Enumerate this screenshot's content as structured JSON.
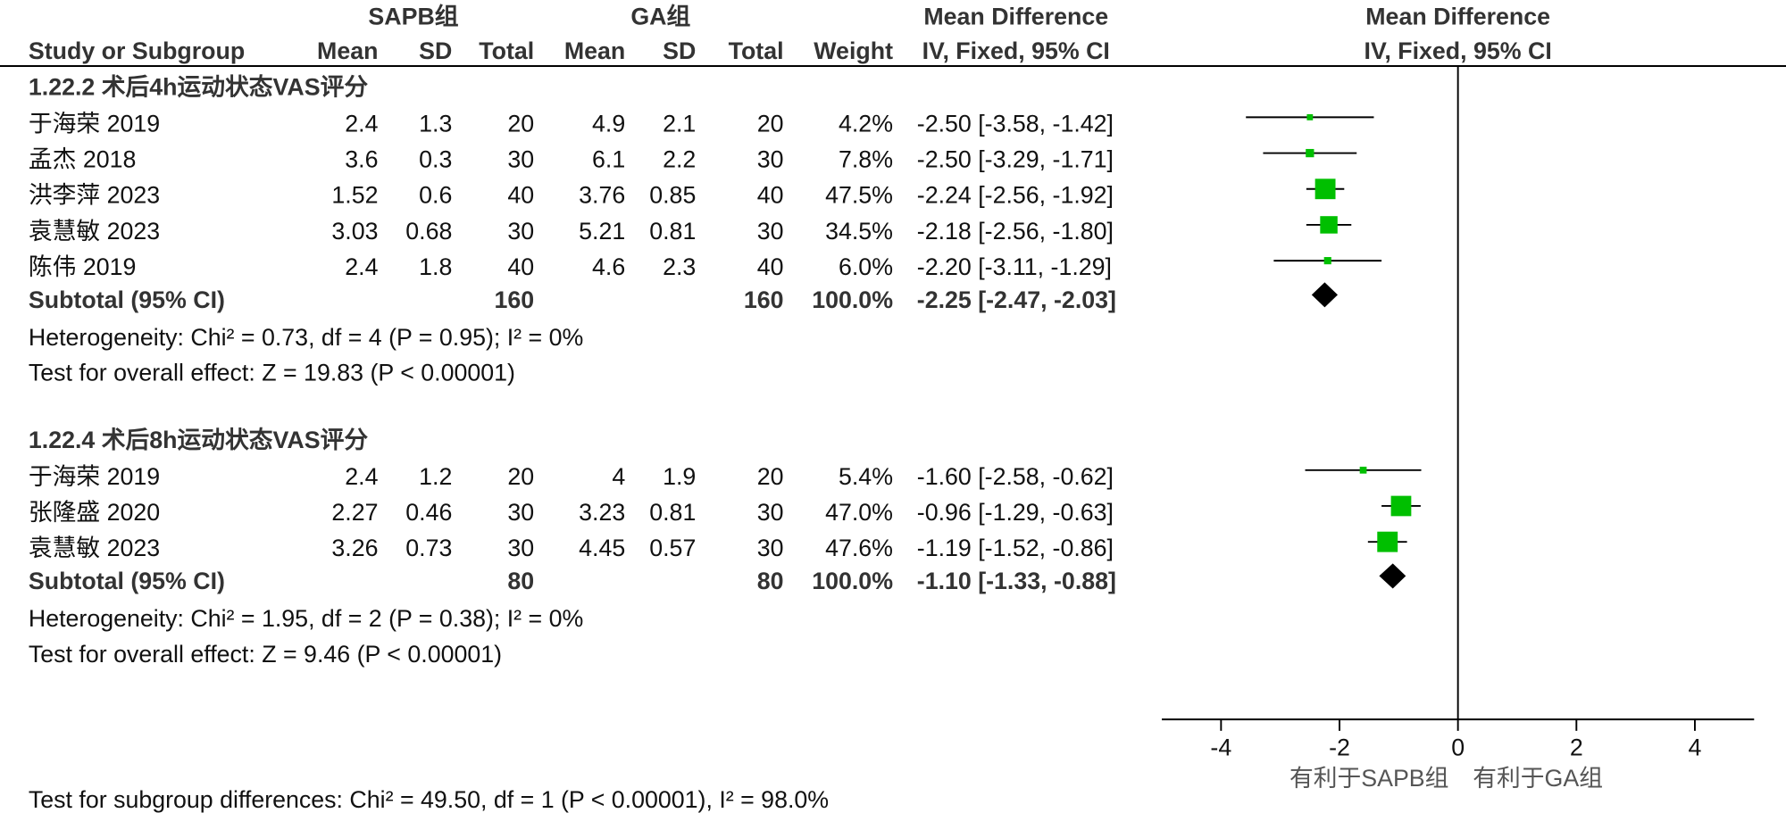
{
  "chart_data": {
    "type": "forest",
    "group_1": "SAPB组",
    "group_2": "GA组",
    "table_title": "Mean Difference",
    "table_method": "IV, Fixed, 95% CI",
    "plot_title": "Mean Difference",
    "plot_method": "IV, Fixed, 95% CI",
    "columns": [
      "Study or Subgroup",
      "Mean",
      "SD",
      "Total",
      "Mean",
      "SD",
      "Total",
      "Weight"
    ],
    "color": "#00bf00",
    "subgroups": [
      {
        "title": "1.22.2 术后4h运动状态VAS评分",
        "studies": [
          {
            "name": "于海荣 2019",
            "sapb": [
              2.4,
              1.3,
              20
            ],
            "ga": [
              4.9,
              2.1,
              20
            ],
            "weight": {
              "value": 4.2,
              "label": "4.2%"
            },
            "md": -2.5,
            "ci_lo": -3.58,
            "ci_hi": -1.42,
            "ci_label": "-2.50 [-3.58, -1.42]"
          },
          {
            "name": "孟杰 2018",
            "sapb": [
              3.6,
              0.3,
              30
            ],
            "ga": [
              6.1,
              2.2,
              30
            ],
            "weight": {
              "value": 7.8,
              "label": "7.8%"
            },
            "md": -2.5,
            "ci_lo": -3.29,
            "ci_hi": -1.71,
            "ci_label": "-2.50 [-3.29, -1.71]"
          },
          {
            "name": "洪李萍 2023",
            "sapb": [
              1.52,
              0.6,
              40
            ],
            "ga": [
              3.76,
              0.85,
              40
            ],
            "weight": {
              "value": 47.5,
              "label": "47.5%"
            },
            "md": -2.24,
            "ci_lo": -2.56,
            "ci_hi": -1.92,
            "ci_label": "-2.24 [-2.56, -1.92]"
          },
          {
            "name": "袁慧敏 2023",
            "sapb": [
              3.03,
              0.68,
              30
            ],
            "ga": [
              5.21,
              0.81,
              30
            ],
            "weight": {
              "value": 34.5,
              "label": "34.5%"
            },
            "md": -2.18,
            "ci_lo": -2.56,
            "ci_hi": -1.8,
            "ci_label": "-2.18 [-2.56, -1.80]"
          },
          {
            "name": "陈伟 2019",
            "sapb": [
              2.4,
              1.8,
              40
            ],
            "ga": [
              4.6,
              2.3,
              40
            ],
            "weight": {
              "value": 6,
              "label": "6.0%"
            },
            "md": -2.2,
            "ci_lo": -3.11,
            "ci_hi": -1.29,
            "ci_label": "-2.20 [-3.11, -1.29]"
          }
        ],
        "subtotal": {
          "label": "Subtotal (95% CI)",
          "sapb_total": 160,
          "ga_total": 160,
          "weight": "100.0%",
          "md": -2.25,
          "ci_lo": -2.47,
          "ci_hi": -2.03,
          "ci_label": "-2.25 [-2.47, -2.03]"
        },
        "heterogeneity": "Heterogeneity: Chi² = 0.73, df = 4 (P = 0.95); I² = 0%",
        "overall_effect": "Test for overall effect: Z = 19.83 (P < 0.00001)"
      },
      {
        "title": "1.22.4 术后8h运动状态VAS评分",
        "studies": [
          {
            "name": "于海荣 2019",
            "sapb": [
              2.4,
              1.2,
              20
            ],
            "ga": [
              4,
              1.9,
              20
            ],
            "weight": {
              "value": 5.4,
              "label": "5.4%"
            },
            "md": -1.6,
            "ci_lo": -2.58,
            "ci_hi": -0.62,
            "ci_label": "-1.60 [-2.58, -0.62]"
          },
          {
            "name": "张隆盛 2020",
            "sapb": [
              2.27,
              0.46,
              30
            ],
            "ga": [
              3.23,
              0.81,
              30
            ],
            "weight": {
              "value": 47,
              "label": "47.0%"
            },
            "md": -0.96,
            "ci_lo": -1.29,
            "ci_hi": -0.63,
            "ci_label": "-0.96 [-1.29, -0.63]"
          },
          {
            "name": "袁慧敏 2023",
            "sapb": [
              3.26,
              0.73,
              30
            ],
            "ga": [
              4.45,
              0.57,
              30
            ],
            "weight": {
              "value": 47.6,
              "label": "47.6%"
            },
            "md": -1.19,
            "ci_lo": -1.52,
            "ci_hi": -0.86,
            "ci_label": "-1.19 [-1.52, -0.86]"
          }
        ],
        "subtotal": {
          "label": "Subtotal (95% CI)",
          "sapb_total": 80,
          "ga_total": 80,
          "weight": "100.0%",
          "md": -1.1,
          "ci_lo": -1.33,
          "ci_hi": -0.88,
          "ci_label": "-1.10 [-1.33, -0.88]"
        },
        "heterogeneity": "Heterogeneity: Chi² = 1.95, df = 2 (P = 0.38); I² = 0%",
        "overall_effect": "Test for overall effect: Z = 9.46 (P < 0.00001)"
      }
    ],
    "xlim": [
      -5,
      5
    ],
    "xticks": [
      -4,
      -2,
      0,
      2,
      4
    ],
    "favours_left": "有利于SAPB组",
    "favours_right": "有利于GA组",
    "subgroup_differences": "Test for subgroup differences: Chi² = 49.50, df = 1 (P < 0.00001), I² = 98.0%"
  }
}
